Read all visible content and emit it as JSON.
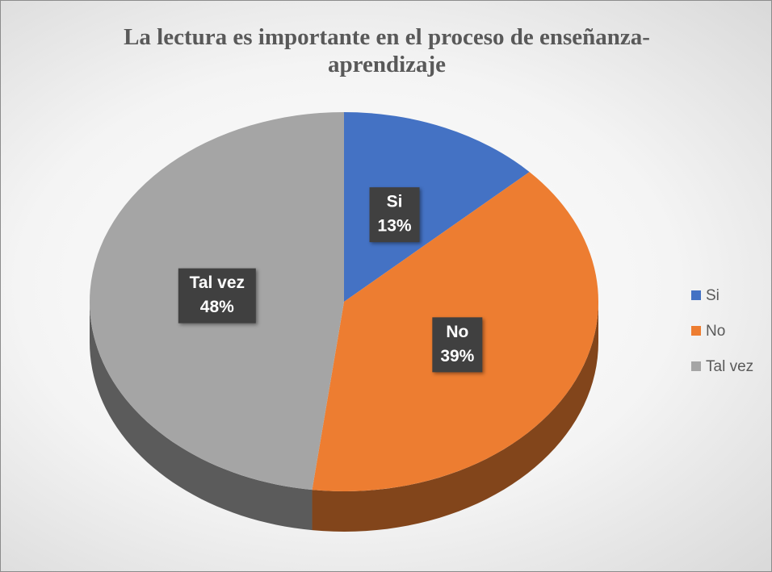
{
  "chart_data": {
    "type": "pie",
    "title": "La lectura es importante en el proceso de enseñanza-aprendizaje",
    "categories": [
      "Si",
      "No",
      "Tal vez"
    ],
    "values": [
      13,
      39,
      48
    ],
    "value_labels": [
      "13%",
      "39%",
      "48%"
    ],
    "colors": [
      "#4472c4",
      "#ed7d31",
      "#a5a5a5"
    ],
    "legend": "right"
  }
}
